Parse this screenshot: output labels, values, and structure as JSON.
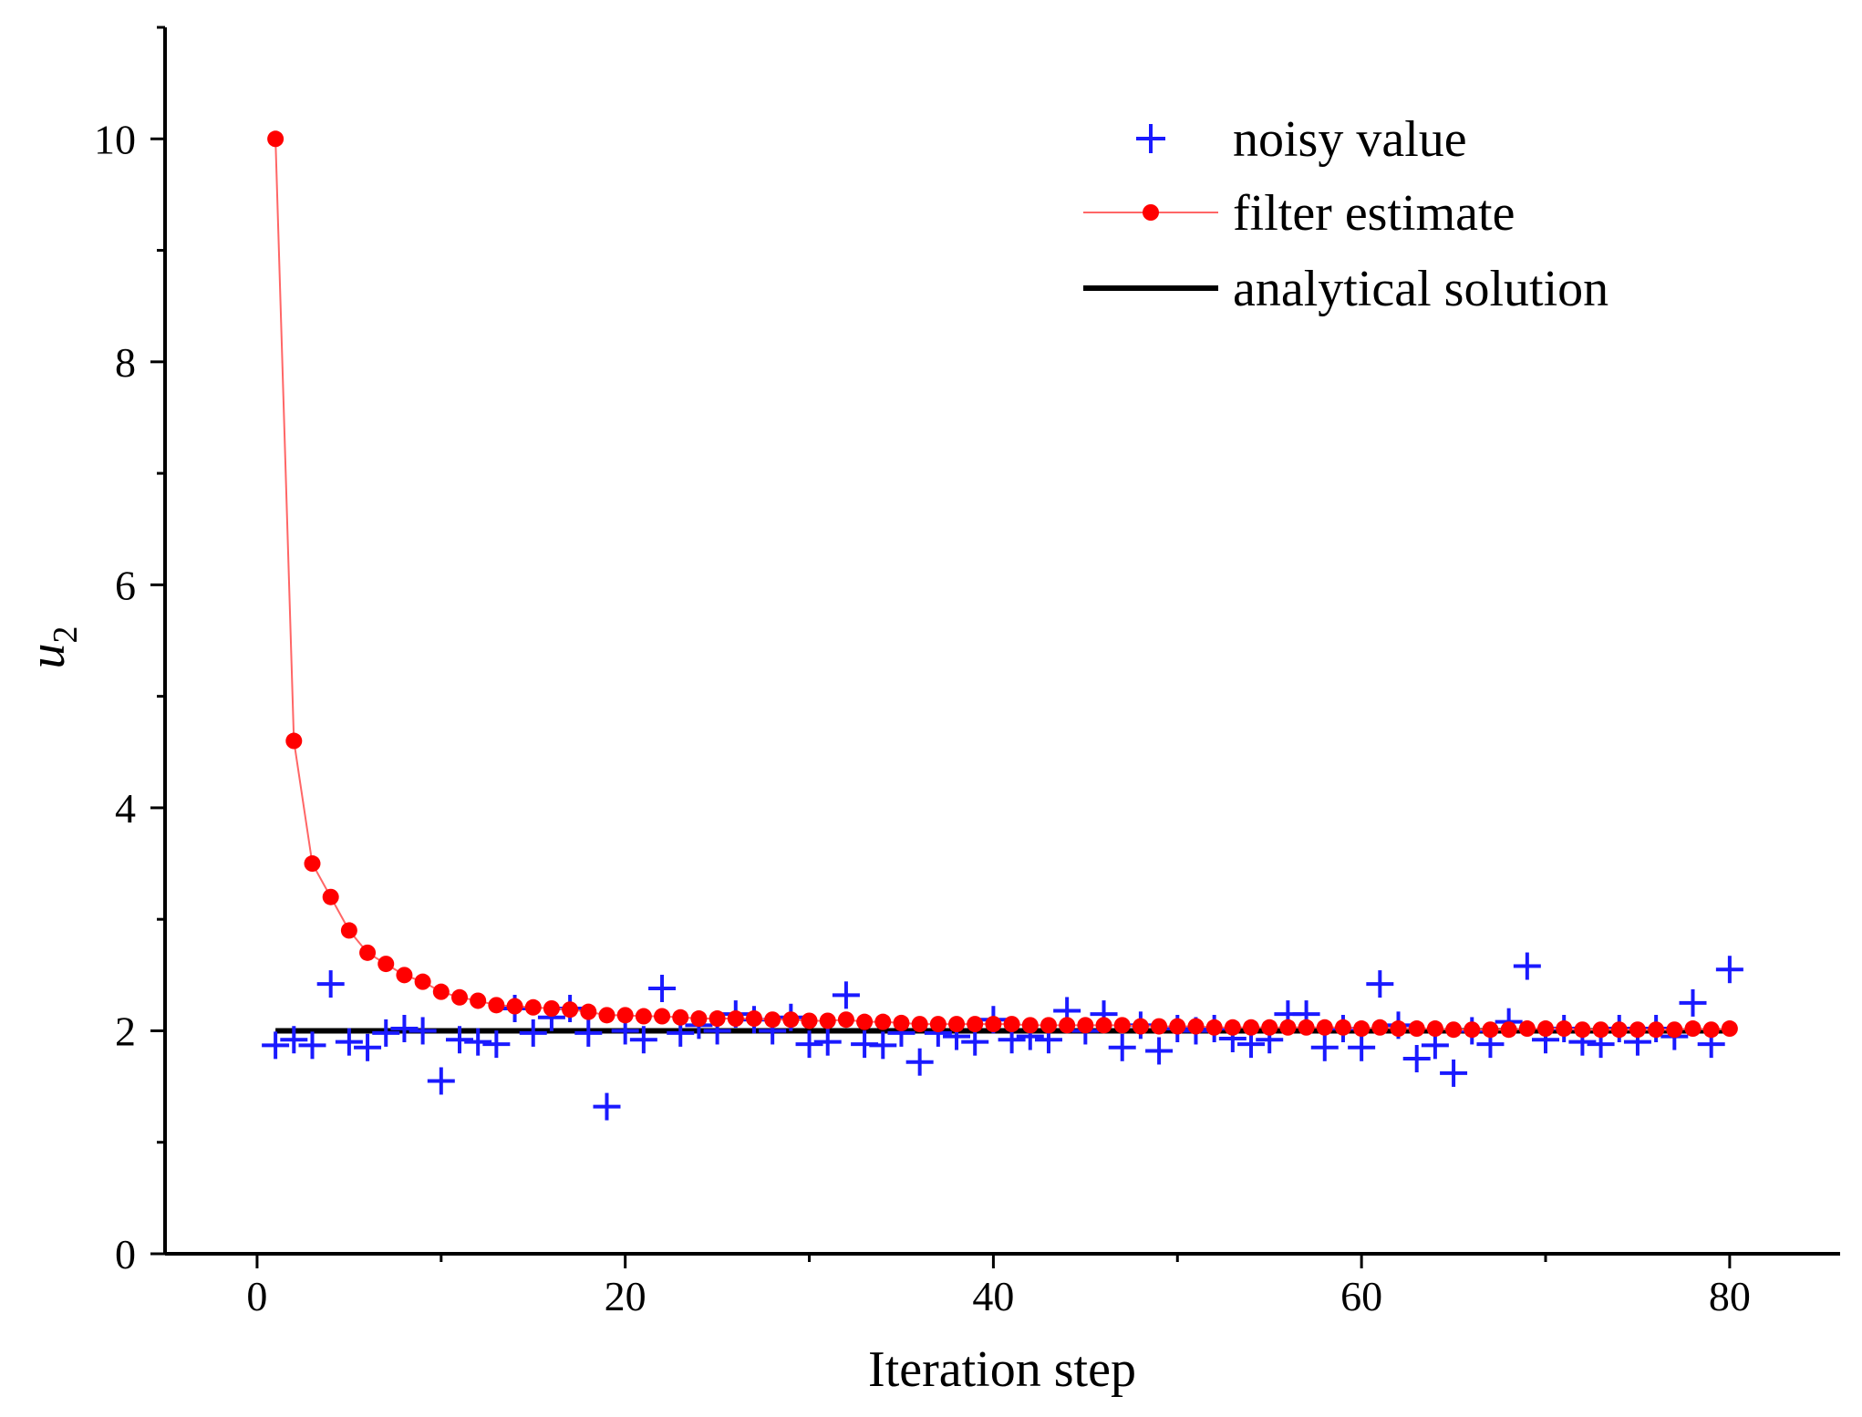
{
  "chart_data": {
    "type": "line",
    "xlabel": "Iteration step",
    "ylabel": "u",
    "ylabel_subscript": "2",
    "xlim": [
      -5,
      86
    ],
    "ylim": [
      0,
      11
    ],
    "x_ticks": [
      0,
      20,
      40,
      60,
      80
    ],
    "x_tick_labels": [
      "0",
      "20",
      "40",
      "60",
      "80"
    ],
    "y_ticks": [
      0,
      2,
      4,
      6,
      8,
      10
    ],
    "y_tick_labels": [
      "0",
      "2",
      "4",
      "6",
      "8",
      "10"
    ],
    "grid": false,
    "legend_position": "top-right",
    "colors": {
      "noisy": "#1a1aff",
      "filter": "#ff0000",
      "filter_line": "#ff6666",
      "analytical": "#000000",
      "axis": "#000000"
    },
    "series": [
      {
        "name": "noisy value",
        "marker": "plus",
        "x": [
          1,
          2,
          3,
          4,
          5,
          6,
          7,
          8,
          9,
          10,
          11,
          12,
          13,
          14,
          15,
          16,
          17,
          18,
          19,
          20,
          21,
          22,
          23,
          24,
          25,
          26,
          27,
          28,
          29,
          30,
          31,
          32,
          33,
          34,
          35,
          36,
          37,
          38,
          39,
          40,
          41,
          42,
          43,
          44,
          45,
          46,
          47,
          48,
          49,
          50,
          51,
          52,
          53,
          54,
          55,
          56,
          57,
          58,
          59,
          60,
          61,
          62,
          63,
          64,
          65,
          66,
          67,
          68,
          69,
          70,
          71,
          72,
          73,
          74,
          75,
          76,
          77,
          78,
          79,
          80
        ],
        "values": [
          1.87,
          1.92,
          1.87,
          2.42,
          1.9,
          1.85,
          1.98,
          2.02,
          2.0,
          1.55,
          1.92,
          1.9,
          1.88,
          2.2,
          1.98,
          2.12,
          2.2,
          1.98,
          1.32,
          2.0,
          1.92,
          2.38,
          1.98,
          2.05,
          2.0,
          2.15,
          2.1,
          2.0,
          2.12,
          1.88,
          1.9,
          2.32,
          1.88,
          1.87,
          1.98,
          1.72,
          1.98,
          1.95,
          1.9,
          2.1,
          1.92,
          1.95,
          1.92,
          2.18,
          2.0,
          2.15,
          1.85,
          2.05,
          1.82,
          2.02,
          2.0,
          2.02,
          1.93,
          1.88,
          1.92,
          2.15,
          2.15,
          1.85,
          2.02,
          1.85,
          2.42,
          2.05,
          1.75,
          1.87,
          1.62,
          2.0,
          1.88,
          2.08,
          2.58,
          1.92,
          2.02,
          1.9,
          1.88,
          2.02,
          1.9,
          2.02,
          1.95,
          2.25,
          1.88,
          2.55
        ]
      },
      {
        "name": "filter estimate",
        "marker": "circle",
        "x": [
          1,
          2,
          3,
          4,
          5,
          6,
          7,
          8,
          9,
          10,
          11,
          12,
          13,
          14,
          15,
          16,
          17,
          18,
          19,
          20,
          21,
          22,
          23,
          24,
          25,
          26,
          27,
          28,
          29,
          30,
          31,
          32,
          33,
          34,
          35,
          36,
          37,
          38,
          39,
          40,
          41,
          42,
          43,
          44,
          45,
          46,
          47,
          48,
          49,
          50,
          51,
          52,
          53,
          54,
          55,
          56,
          57,
          58,
          59,
          60,
          61,
          62,
          63,
          64,
          65,
          66,
          67,
          68,
          69,
          70,
          71,
          72,
          73,
          74,
          75,
          76,
          77,
          78,
          79,
          80
        ],
        "values": [
          10.0,
          4.6,
          3.5,
          3.2,
          2.9,
          2.7,
          2.6,
          2.5,
          2.44,
          2.35,
          2.3,
          2.27,
          2.23,
          2.22,
          2.21,
          2.2,
          2.19,
          2.17,
          2.14,
          2.14,
          2.13,
          2.13,
          2.12,
          2.11,
          2.11,
          2.11,
          2.11,
          2.1,
          2.1,
          2.09,
          2.09,
          2.1,
          2.08,
          2.08,
          2.07,
          2.06,
          2.06,
          2.06,
          2.06,
          2.06,
          2.06,
          2.05,
          2.05,
          2.05,
          2.05,
          2.05,
          2.05,
          2.04,
          2.04,
          2.04,
          2.04,
          2.03,
          2.03,
          2.03,
          2.03,
          2.03,
          2.03,
          2.03,
          2.03,
          2.02,
          2.03,
          2.02,
          2.02,
          2.02,
          2.01,
          2.01,
          2.01,
          2.01,
          2.02,
          2.02,
          2.02,
          2.01,
          2.01,
          2.01,
          2.01,
          2.01,
          2.01,
          2.02,
          2.01,
          2.02
        ]
      },
      {
        "name": "analytical solution",
        "marker": "line",
        "x": [
          1,
          80
        ],
        "values": [
          2.0,
          2.0
        ]
      }
    ]
  }
}
